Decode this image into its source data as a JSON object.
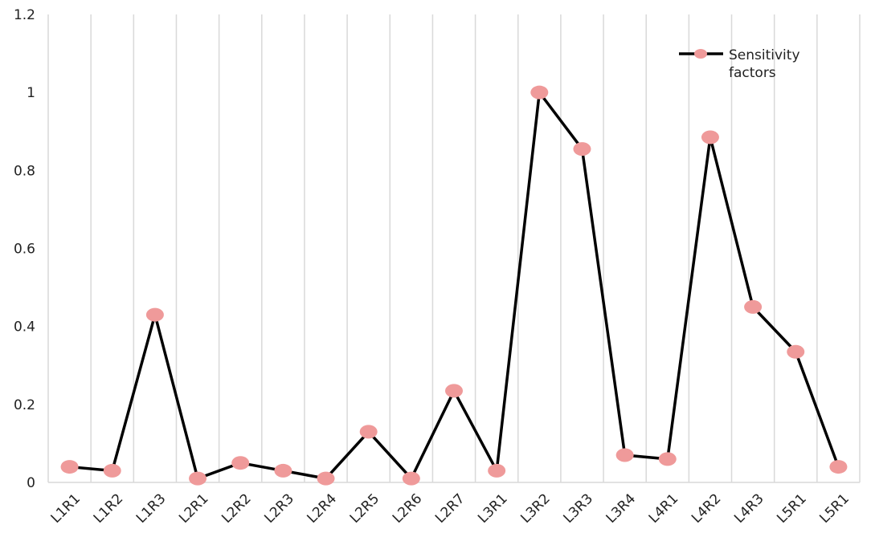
{
  "chart_data": {
    "type": "line",
    "title": "",
    "xlabel": "",
    "ylabel": "",
    "categories": [
      "L1R1",
      "L1R2",
      "L1R3",
      "L2R1",
      "L2R2",
      "L2R3",
      "L2R4",
      "L2R5",
      "L2R6",
      "L2R7",
      "L3R1",
      "L3R2",
      "L3R3",
      "L3R4",
      "L4R1",
      "L4R2",
      "L4R3",
      "L5R1",
      "L5R1"
    ],
    "series": [
      {
        "name": "Sensitivity factors",
        "values": [
          0.04,
          0.03,
          0.43,
          0.01,
          0.05,
          0.03,
          0.01,
          0.13,
          0.01,
          0.235,
          0.03,
          1.0,
          0.855,
          0.07,
          0.06,
          0.885,
          0.45,
          0.335,
          0.04
        ]
      }
    ],
    "ylim": [
      0,
      1.2
    ],
    "yticks": [
      "0",
      "0.2",
      "0.4",
      "0.6",
      "0.8",
      "1",
      "1.2"
    ],
    "ytick_values": [
      0,
      0.2,
      0.4,
      0.6,
      0.8,
      1.0,
      1.2
    ],
    "grid": "vertical",
    "legend": {
      "position": "top-right",
      "line1": "Sensitivity",
      "line2": "factors"
    },
    "colors": {
      "line": "#000000",
      "marker": "#ef9a9a",
      "grid": "#d9d9d9"
    }
  }
}
